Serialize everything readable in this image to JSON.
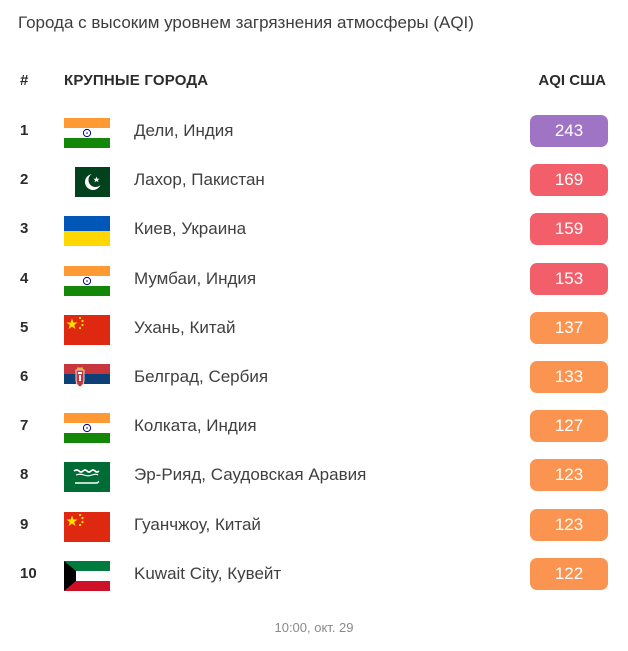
{
  "title": "Города с высоким уровнем загрязнения атмосферы (AQI)",
  "header": {
    "num": "#",
    "city": "КРУПНЫЕ ГОРОДА",
    "aqi": "AQI США"
  },
  "colors": {
    "purple": "#a074c4",
    "red": "#f25f6a",
    "orange": "#fb9450"
  },
  "rows": [
    {
      "rank": "1",
      "flag": "india-flag",
      "city": "Дели, Индия",
      "aqi": "243",
      "color": "#a074c4"
    },
    {
      "rank": "2",
      "flag": "pakistan-flag",
      "city": "Лахор, Пакистан",
      "aqi": "169",
      "color": "#f25f6a"
    },
    {
      "rank": "3",
      "flag": "ukraine-flag",
      "city": "Киев, Украина",
      "aqi": "159",
      "color": "#f25f6a"
    },
    {
      "rank": "4",
      "flag": "india-flag",
      "city": "Мумбаи, Индия",
      "aqi": "153",
      "color": "#f25f6a"
    },
    {
      "rank": "5",
      "flag": "china-flag",
      "city": "Ухань, Китай",
      "aqi": "137",
      "color": "#fb9450"
    },
    {
      "rank": "6",
      "flag": "serbia-flag",
      "city": "Белград, Сербия",
      "aqi": "133",
      "color": "#fb9450"
    },
    {
      "rank": "7",
      "flag": "india-flag",
      "city": "Колката, Индия",
      "aqi": "127",
      "color": "#fb9450"
    },
    {
      "rank": "8",
      "flag": "saudi-arabia-flag",
      "city": "Эр-Рияд, Саудовская Аравия",
      "aqi": "123",
      "color": "#fb9450"
    },
    {
      "rank": "9",
      "flag": "china-flag",
      "city": "Гуанчжоу, Китай",
      "aqi": "123",
      "color": "#fb9450"
    },
    {
      "rank": "10",
      "flag": "kuwait-flag",
      "city": "Kuwait City, Кувейт",
      "aqi": "122",
      "color": "#fb9450"
    }
  ],
  "timestamp": "10:00, окт. 29"
}
